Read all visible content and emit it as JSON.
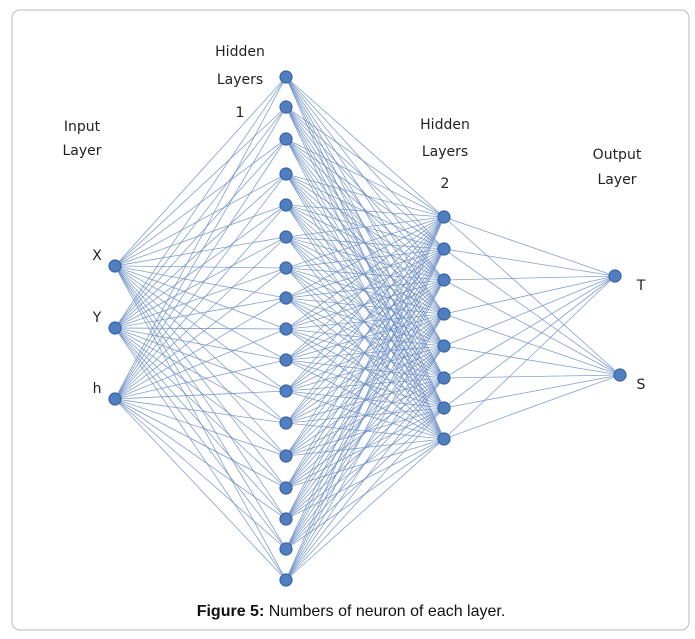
{
  "layers": [
    {
      "title": [
        "Input",
        "Layer"
      ],
      "nodes": [
        "X",
        "Y",
        "h"
      ]
    },
    {
      "title": [
        "Hidden",
        "Layers",
        "1"
      ]
    },
    {
      "title": [
        "Hidden",
        "Layers",
        "2"
      ]
    },
    {
      "title": [
        "Output",
        "Layer"
      ],
      "nodes": [
        "T",
        "S"
      ]
    }
  ],
  "caption": {
    "label": "Figure 5:",
    "text": "Numbers of neuron of each layer."
  }
}
